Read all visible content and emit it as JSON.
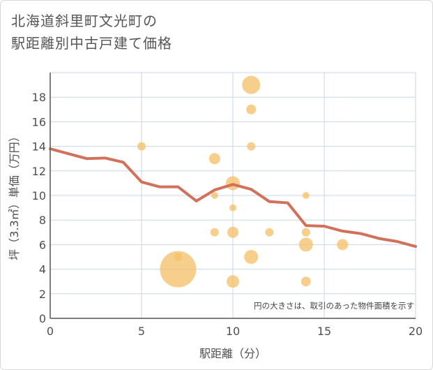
{
  "title": {
    "line1": "北海道斜里町文光町の",
    "line2": "駅距離別中古戸建て価格"
  },
  "chart_data": {
    "type": "scatter",
    "title": "北海道斜里町文光町の駅距離別中古戸建て価格",
    "xlabel": "駅距離（分）",
    "ylabel": "坪（3.3㎡）単価（万円）",
    "xlim": [
      0,
      20
    ],
    "ylim": [
      0,
      20
    ],
    "xticks": [
      0,
      5,
      10,
      15,
      20
    ],
    "yticks": [
      0,
      2,
      4,
      6,
      8,
      10,
      12,
      14,
      16,
      18
    ],
    "grid": true,
    "note": "円の大きさは、取引のあった物件面積を示す",
    "bubble_color": "#f5c16c",
    "line_color": "#d2705a",
    "bubbles": [
      {
        "x": 7,
        "y": 4,
        "r": 26
      },
      {
        "x": 7,
        "y": 5,
        "r": 6
      },
      {
        "x": 5,
        "y": 14,
        "r": 6
      },
      {
        "x": 9,
        "y": 13,
        "r": 8
      },
      {
        "x": 9,
        "y": 10,
        "r": 5
      },
      {
        "x": 9,
        "y": 7,
        "r": 6
      },
      {
        "x": 10,
        "y": 11,
        "r": 10
      },
      {
        "x": 10,
        "y": 9,
        "r": 5
      },
      {
        "x": 10,
        "y": 7,
        "r": 8
      },
      {
        "x": 10,
        "y": 3,
        "r": 9
      },
      {
        "x": 11,
        "y": 19,
        "r": 13
      },
      {
        "x": 11,
        "y": 17,
        "r": 7
      },
      {
        "x": 11,
        "y": 14,
        "r": 6
      },
      {
        "x": 11,
        "y": 5,
        "r": 10
      },
      {
        "x": 12,
        "y": 7,
        "r": 6
      },
      {
        "x": 14,
        "y": 10,
        "r": 5
      },
      {
        "x": 14,
        "y": 7,
        "r": 6
      },
      {
        "x": 14,
        "y": 6,
        "r": 10
      },
      {
        "x": 14,
        "y": 3,
        "r": 7
      },
      {
        "x": 16,
        "y": 6,
        "r": 8
      }
    ],
    "line": [
      {
        "x": 0,
        "y": 13.8
      },
      {
        "x": 1,
        "y": 13.4
      },
      {
        "x": 2,
        "y": 13.0
      },
      {
        "x": 3,
        "y": 13.05
      },
      {
        "x": 4,
        "y": 12.7
      },
      {
        "x": 5,
        "y": 11.1
      },
      {
        "x": 6,
        "y": 10.7
      },
      {
        "x": 7,
        "y": 10.7
      },
      {
        "x": 8,
        "y": 9.55
      },
      {
        "x": 9,
        "y": 10.45
      },
      {
        "x": 10,
        "y": 10.9
      },
      {
        "x": 11,
        "y": 10.5
      },
      {
        "x": 12,
        "y": 9.5
      },
      {
        "x": 13,
        "y": 9.4
      },
      {
        "x": 14,
        "y": 7.55
      },
      {
        "x": 15,
        "y": 7.5
      },
      {
        "x": 16,
        "y": 7.1
      },
      {
        "x": 17,
        "y": 6.9
      },
      {
        "x": 18,
        "y": 6.5
      },
      {
        "x": 19,
        "y": 6.25
      },
      {
        "x": 20,
        "y": 5.85
      }
    ]
  }
}
